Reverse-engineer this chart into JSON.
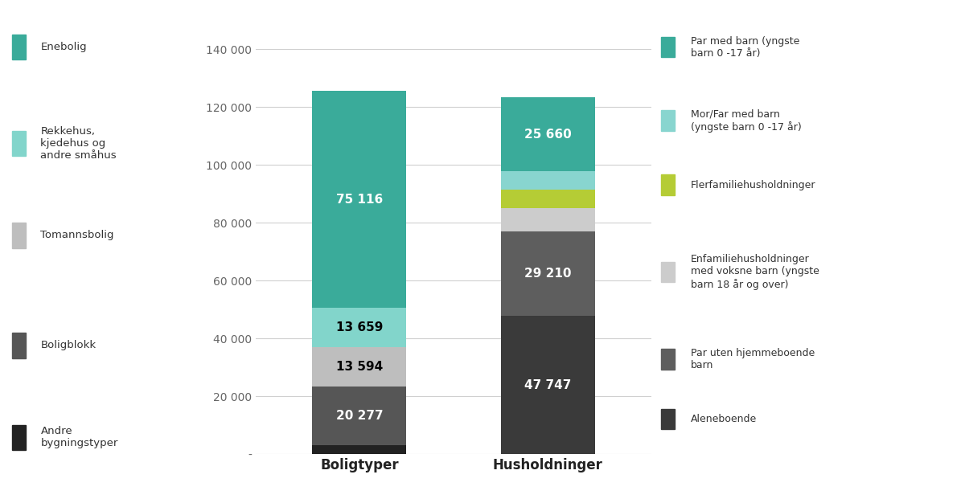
{
  "boligtyper_values": [
    3000,
    20277,
    13594,
    13659,
    75116
  ],
  "boligtyper_colors": [
    "#222222",
    "#565656",
    "#bebebe",
    "#82d5cb",
    "#3aab9a"
  ],
  "boligtyper_labels": [
    "",
    "20 277",
    "13 594",
    "13 659",
    "75 116"
  ],
  "boligtyper_label_colors": [
    "white",
    "white",
    "black",
    "black",
    "white"
  ],
  "husholdninger_values": [
    47747,
    29210,
    8200,
    6400,
    6183,
    25660
  ],
  "husholdninger_colors": [
    "#3a3a3a",
    "#5e5e5e",
    "#cccccc",
    "#b5cc35",
    "#88d5cf",
    "#3aab9a"
  ],
  "husholdninger_labels": [
    "47 747",
    "29 210",
    "",
    "",
    "",
    "25 660"
  ],
  "husholdninger_label_colors": [
    "white",
    "white",
    "white",
    "white",
    "white",
    "white"
  ],
  "left_legend_items": [
    {
      "label": "Enebolig",
      "color": "#3aab9a"
    },
    {
      "label": "Rekkehus,\nkjedehus og\nandre småhus",
      "color": "#82d5cb"
    },
    {
      "label": "Tomannsbolig",
      "color": "#bebebe"
    },
    {
      "label": "Boligblokk",
      "color": "#565656"
    },
    {
      "label": "Andre\nbygningstyper",
      "color": "#222222"
    }
  ],
  "right_legend_items": [
    {
      "label": "Par med barn (yngste\nbarn 0 -17 år)",
      "color": "#3aab9a"
    },
    {
      "label": "Mor/Far med barn\n(yngste barn 0 -17 år)",
      "color": "#88d5cf"
    },
    {
      "label": "Flerfamiliehusholdninger",
      "color": "#b5cc35"
    },
    {
      "label": "Enfamiliehusholdninger\nmed voksne barn (yngste\nbarn 18 år og over)",
      "color": "#cccccc"
    },
    {
      "label": "Par uten hjemmeboende\nbarn",
      "color": "#5e5e5e"
    },
    {
      "label": "Aleneboende",
      "color": "#3a3a3a"
    }
  ],
  "yticks": [
    0,
    20000,
    40000,
    60000,
    80000,
    100000,
    120000,
    140000
  ],
  "ytick_labels": [
    "-",
    "20 000",
    "40 000",
    "60 000",
    "80 000",
    "100 000",
    "120 000",
    "140 000"
  ],
  "xlabel_boligtyper": "Boligtyper",
  "xlabel_husholdninger": "Husholdninger",
  "ymax": 145000,
  "bar_width": 0.5,
  "background_color": "#ffffff"
}
